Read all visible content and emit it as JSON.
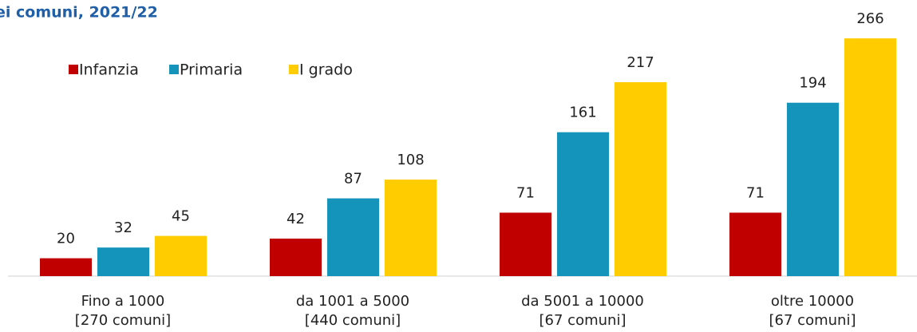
{
  "chart_data": {
    "type": "bar",
    "title": "ei comuni, 2021/22",
    "categories": [
      "Fino a 1000\n[270 comuni]",
      "da 1001 a 5000\n[440 comuni]",
      "da 5001 a 10000\n[67 comuni]",
      "oltre 10000\n[67 comuni]"
    ],
    "series": [
      {
        "name": "Infanzia",
        "color": "#c00000",
        "values": [
          20,
          42,
          71,
          71
        ]
      },
      {
        "name": "Primaria",
        "color": "#1493bb",
        "values": [
          32,
          87,
          161,
          194
        ]
      },
      {
        "name": "I grado",
        "color": "#ffcc00",
        "values": [
          45,
          108,
          217,
          266
        ]
      }
    ]
  }
}
